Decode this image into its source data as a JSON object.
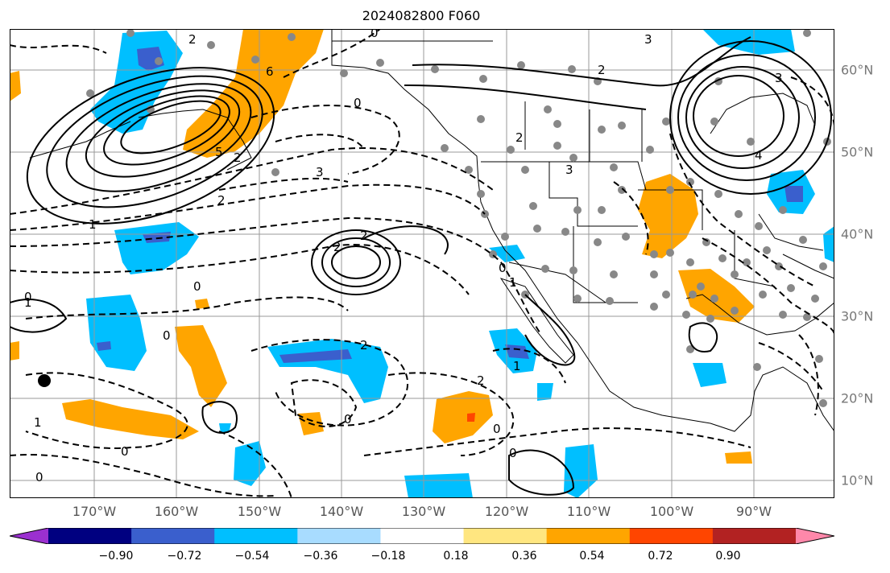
{
  "title": "2024082800 F060",
  "map": {
    "projection": "lat-lon",
    "lon_range": [
      -180,
      -80
    ],
    "lat_range": [
      7,
      64
    ],
    "lon_ticks": [
      "170°W",
      "160°W",
      "150°W",
      "140°W",
      "130°W",
      "120°W",
      "110°W",
      "100°W",
      "90°W"
    ],
    "lat_ticks": [
      "60°N",
      "50°N",
      "40°N",
      "30°N",
      "20°N",
      "10°N"
    ],
    "grid": true,
    "contour_labels": [
      "2",
      "0",
      "3",
      "6",
      "2",
      "5",
      "2",
      "0",
      "3",
      "2",
      "1",
      "2",
      "3",
      "2",
      "1",
      "0",
      "0",
      "1",
      "0",
      "2",
      "2",
      "0",
      "1",
      "1",
      "0",
      "0",
      "2",
      "3",
      "4",
      "0",
      "0",
      "0"
    ],
    "shading_colors": {
      "neg_extreme": "#9b30d0",
      "neg_dark": "#000080",
      "neg_mid": "#3a5fcd",
      "neg_light": "#00bfff",
      "neg_pale": "#a8dcff",
      "pos_pale": "#ffe680",
      "pos_light": "#ffa500",
      "pos_mid": "#ff4500",
      "pos_dark": "#b22222",
      "pos_extreme": "#ff88aa"
    }
  },
  "colorbar": {
    "tick_labels": [
      "−0.90",
      "−0.72",
      "−0.54",
      "−0.36",
      "−0.18",
      "0.18",
      "0.36",
      "0.54",
      "0.72",
      "0.90"
    ],
    "colors": [
      "#9b30d0",
      "#000080",
      "#3a5fcd",
      "#00bfff",
      "#a8dcff",
      "#ffffff",
      "#ffe680",
      "#ffa500",
      "#ff4500",
      "#b22222",
      "#ff88aa"
    ]
  }
}
